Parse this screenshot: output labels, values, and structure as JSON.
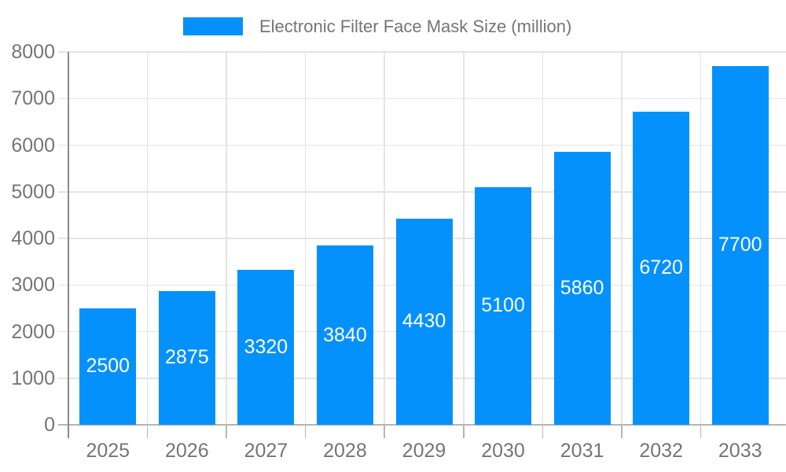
{
  "legend": {
    "label": "Electronic Filter Face Mask Size (million)"
  },
  "chart_data": {
    "type": "bar",
    "title": "",
    "legend_label": "Electronic Filter Face Mask Size (million)",
    "legend_position": "top",
    "categories": [
      "2025",
      "2026",
      "2027",
      "2028",
      "2029",
      "2030",
      "2031",
      "2032",
      "2033"
    ],
    "series": [
      {
        "name": "Electronic Filter Face Mask Size (million)",
        "values": [
          2500,
          2875,
          3320,
          3840,
          4430,
          5100,
          5860,
          6720,
          7700
        ]
      }
    ],
    "xlabel": "",
    "ylabel": "",
    "ylim": [
      0,
      8000
    ],
    "y_ticks": [
      0,
      1000,
      2000,
      3000,
      4000,
      5000,
      6000,
      7000,
      8000
    ],
    "grid": true,
    "data_labels": "inside-center",
    "colors": {
      "bar": "#0591fb",
      "bar_label_text": "#ffffff",
      "axis_text": "#757575",
      "gridline": "#e4e4e4",
      "baseline": "#b5b5b5",
      "y_axis_line": "#8a8a8a",
      "background": "#ffffff"
    }
  }
}
